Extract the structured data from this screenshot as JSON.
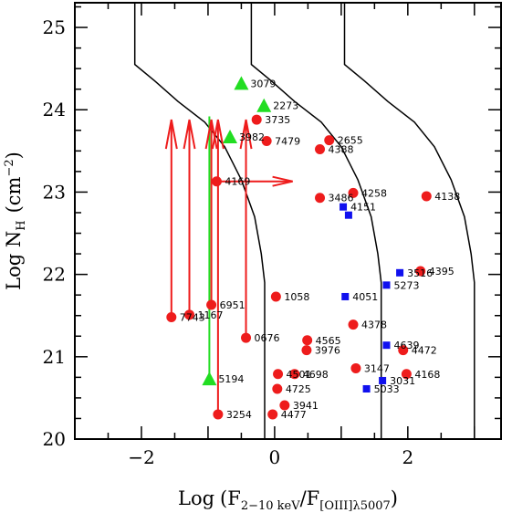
{
  "chart_data": {
    "type": "scatter",
    "xlabel_parts": {
      "log": "Log",
      "f_hard": "F",
      "hard_band": "2−10 keV",
      "slash": "/F",
      "oiii_band": "[OIII]λ5007"
    },
    "ylabel_parts": {
      "log": "Log N",
      "sub": "H",
      "unit": "(cm",
      "exp": "−2",
      "close": ")"
    },
    "xlim": [
      -3.0,
      3.4
    ],
    "ylim": [
      20.0,
      25.3
    ],
    "x_ticks": [
      -2,
      0,
      2
    ],
    "y_ticks": [
      20,
      21,
      22,
      23,
      24,
      25
    ],
    "grid": false,
    "colors": {
      "circle": "#ee1c1c",
      "triangle": "#22dd22",
      "square": "#1010ee",
      "arrow": "#ee1c1c",
      "green_line": "#22dd22",
      "curve": "#000000"
    },
    "circles": [
      {
        "label": "7743",
        "x": -1.55,
        "y": 21.48
      },
      {
        "label": "1167",
        "x": -1.28,
        "y": 21.51
      },
      {
        "label": "6951",
        "x": -0.95,
        "y": 21.63
      },
      {
        "label": "0676",
        "x": -0.43,
        "y": 21.23
      },
      {
        "label": "3254",
        "x": -0.85,
        "y": 20.3
      },
      {
        "label": "4169",
        "x": -0.87,
        "y": 23.13
      },
      {
        "label": "3735",
        "x": -0.27,
        "y": 23.88
      },
      {
        "label": "7479",
        "x": -0.12,
        "y": 23.62
      },
      {
        "label": "2655",
        "x": 0.82,
        "y": 23.63
      },
      {
        "label": "4388",
        "x": 0.68,
        "y": 23.52
      },
      {
        "label": "3486",
        "x": 0.68,
        "y": 22.93
      },
      {
        "label": "4258",
        "x": 1.18,
        "y": 22.99
      },
      {
        "label": "4138",
        "x": 2.28,
        "y": 22.95
      },
      {
        "label": "4395",
        "x": 2.19,
        "y": 22.04
      },
      {
        "label": "1058",
        "x": 0.02,
        "y": 21.73
      },
      {
        "label": "4378",
        "x": 1.18,
        "y": 21.39
      },
      {
        "label": "4565",
        "x": 0.49,
        "y": 21.2
      },
      {
        "label": "3976",
        "x": 0.48,
        "y": 21.08
      },
      {
        "label": "4472",
        "x": 1.93,
        "y": 21.08
      },
      {
        "label": "3147",
        "x": 1.22,
        "y": 20.86
      },
      {
        "label": "4168",
        "x": 1.98,
        "y": 20.79
      },
      {
        "label": "4501",
        "x": 0.05,
        "y": 20.79
      },
      {
        "label": "4698",
        "x": 0.3,
        "y": 20.79
      },
      {
        "label": "4725",
        "x": 0.04,
        "y": 20.61
      },
      {
        "label": "3941",
        "x": 0.15,
        "y": 20.41
      },
      {
        "label": "4477",
        "x": -0.03,
        "y": 20.3
      }
    ],
    "triangles": [
      {
        "label": "3079",
        "x": -0.5,
        "y": 24.32
      },
      {
        "label": "2273",
        "x": -0.16,
        "y": 24.05
      },
      {
        "label": "3982",
        "x": -0.67,
        "y": 23.67
      },
      {
        "label": "5194",
        "x": -0.98,
        "y": 20.73
      }
    ],
    "squares": [
      {
        "label": "4151",
        "x": 1.03,
        "y": 22.82
      },
      {
        "label": "",
        "x": 1.11,
        "y": 22.72
      },
      {
        "label": "4051",
        "x": 1.06,
        "y": 21.73
      },
      {
        "label": "3516",
        "x": 1.88,
        "y": 22.02
      },
      {
        "label": "5273",
        "x": 1.68,
        "y": 21.87
      },
      {
        "label": "4639",
        "x": 1.68,
        "y": 21.14
      },
      {
        "label": "3031",
        "x": 1.62,
        "y": 20.71
      },
      {
        "label": "5033",
        "x": 1.38,
        "y": 20.61
      }
    ],
    "up_arrows": [
      {
        "x": -1.55,
        "y0": 21.48,
        "y1": 23.88
      },
      {
        "x": -1.28,
        "y0": 21.51,
        "y1": 23.88
      },
      {
        "x": -0.95,
        "y0": 21.63,
        "y1": 23.88
      },
      {
        "x": -0.85,
        "y0": 20.3,
        "y1": 23.88
      },
      {
        "x": -0.43,
        "y0": 21.23,
        "y1": 23.88
      }
    ],
    "right_arrows": [
      {
        "y": 23.13,
        "x0": -0.87,
        "x1": 0.27
      }
    ],
    "green_lines": [
      {
        "x": -0.98,
        "y0": 20.73,
        "y1": 23.92
      }
    ],
    "curves": [
      [
        [
          -2.1,
          25.3
        ],
        [
          -2.1,
          24.55
        ],
        [
          -1.8,
          24.35
        ],
        [
          -1.45,
          24.1
        ],
        [
          -1.05,
          23.85
        ],
        [
          -0.75,
          23.55
        ],
        [
          -0.5,
          23.15
        ],
        [
          -0.3,
          22.7
        ],
        [
          -0.2,
          22.25
        ],
        [
          -0.15,
          21.9
        ],
        [
          -0.15,
          20.0
        ]
      ],
      [
        [
          -0.35,
          25.3
        ],
        [
          -0.35,
          24.55
        ],
        [
          -0.05,
          24.35
        ],
        [
          0.3,
          24.1
        ],
        [
          0.7,
          23.85
        ],
        [
          1.0,
          23.55
        ],
        [
          1.25,
          23.15
        ],
        [
          1.45,
          22.7
        ],
        [
          1.55,
          22.25
        ],
        [
          1.6,
          21.9
        ],
        [
          1.6,
          20.0
        ]
      ],
      [
        [
          1.05,
          25.3
        ],
        [
          1.05,
          24.55
        ],
        [
          1.35,
          24.35
        ],
        [
          1.7,
          24.1
        ],
        [
          2.1,
          23.85
        ],
        [
          2.4,
          23.55
        ],
        [
          2.65,
          23.15
        ],
        [
          2.85,
          22.7
        ],
        [
          2.95,
          22.25
        ],
        [
          3.0,
          21.9
        ],
        [
          3.0,
          20.0
        ]
      ]
    ]
  }
}
